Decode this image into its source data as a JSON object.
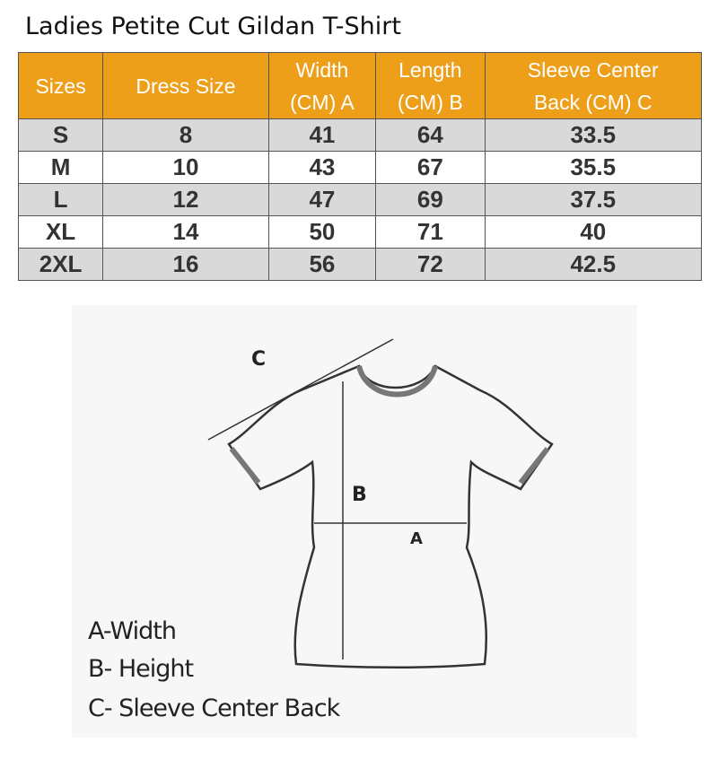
{
  "title": "Ladies Petite Cut Gildan T-Shirt",
  "header_color": "#ee9f1a",
  "table": {
    "headers": [
      "Sizes",
      "Dress Size",
      "Width (CM) A",
      "Length (CM) B",
      "Sleeve Center Back (CM) C"
    ],
    "header_lines": [
      [
        "Sizes"
      ],
      [
        "Dress Size"
      ],
      [
        "Width",
        "(CM) A"
      ],
      [
        "Length",
        "(CM) B"
      ],
      [
        "Sleeve Center",
        "Back (CM) C"
      ]
    ],
    "rows": [
      [
        "S",
        "8",
        "41",
        "64",
        "33.5"
      ],
      [
        "M",
        "10",
        "43",
        "67",
        "35.5"
      ],
      [
        "L",
        "12",
        "47",
        "69",
        "37.5"
      ],
      [
        "XL",
        "14",
        "50",
        "71",
        "40"
      ],
      [
        "2XL",
        "16",
        "56",
        "72",
        "42.5"
      ]
    ]
  },
  "diagram": {
    "labels": {
      "a": "A",
      "b": "B",
      "c": "C"
    },
    "legend": [
      "A-Width",
      "B- Height",
      "C- Sleeve Center Back"
    ]
  }
}
